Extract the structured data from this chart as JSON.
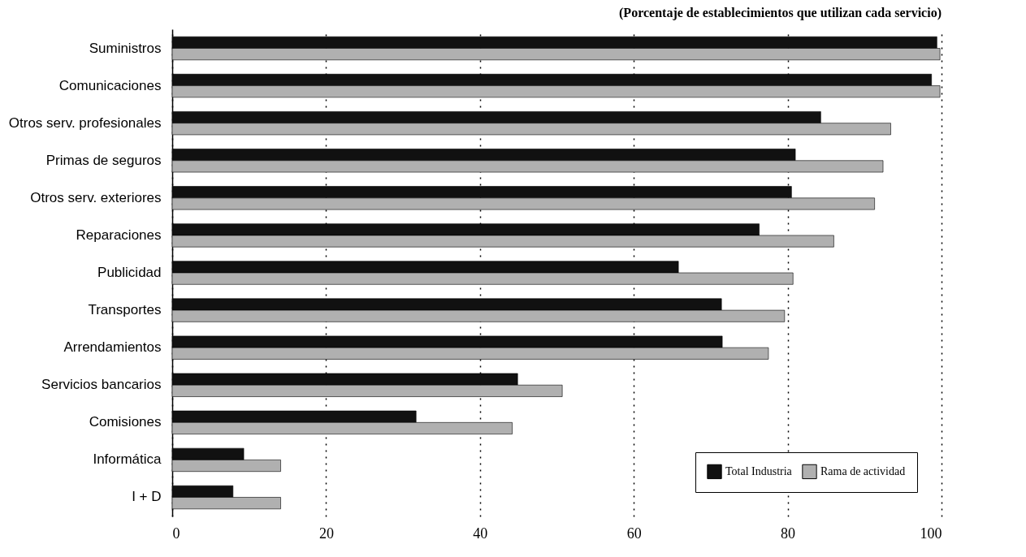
{
  "chart_data": {
    "type": "bar",
    "orientation": "horizontal",
    "title": "(Porcentaje de establecimientos que utilizan cada servicio)",
    "categories": [
      "Suministros",
      "Comunicaciones",
      "Otros serv. profesionales",
      "Primas de seguros",
      "Otros serv. exteriores",
      "Reparaciones",
      "Publicidad",
      "Transportes",
      "Arrendamientos",
      "Servicios bancarios",
      "Comisiones",
      "Informática",
      "I + D"
    ],
    "series": [
      {
        "name": "Total Industria",
        "color": "#111111",
        "values": [
          99.4,
          98.7,
          84.3,
          81,
          80.5,
          76.3,
          65.8,
          71.4,
          71.5,
          44.9,
          31.7,
          9.3,
          7.9
        ]
      },
      {
        "name": "Rama de actividad",
        "color": "#b0b0b0",
        "values": [
          99.8,
          99.8,
          93.4,
          92.4,
          91.3,
          86,
          80.7,
          79.6,
          77.5,
          50.7,
          44.2,
          14.1,
          14.1
        ]
      }
    ],
    "xlim": [
      0,
      100
    ],
    "xticks": [
      0,
      20,
      40,
      60,
      80,
      100
    ],
    "grid": "x",
    "legend": "bottom right"
  }
}
